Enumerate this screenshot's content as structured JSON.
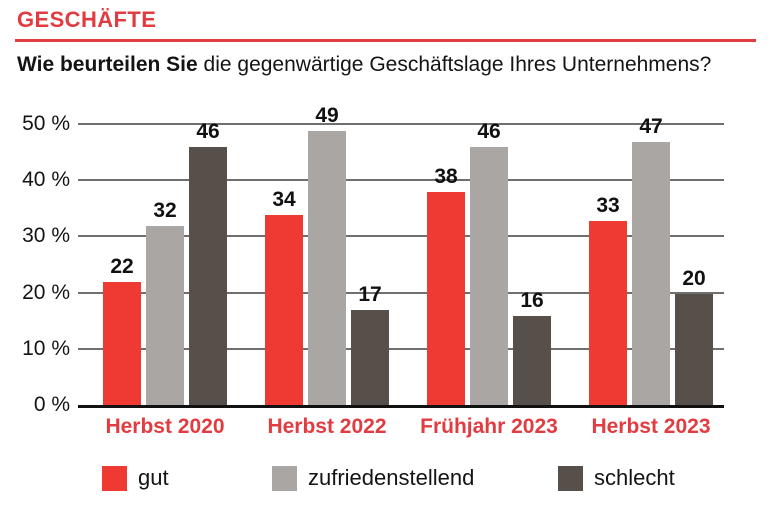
{
  "header": {
    "kicker": "GESCHÄFTE",
    "question_bold": "Wie beurteilen Sie",
    "question_rest": " die gegenwärtige Geschäftslage Ihres Unternehmens?"
  },
  "colors": {
    "accent_red": "#e13c41",
    "bar_red": "#ee3a33",
    "bar_gray": "#a9a6a3",
    "bar_dark": "#564f4a",
    "gridline": "#6f6f6f",
    "axis": "#111111"
  },
  "chart_data": {
    "type": "bar",
    "title": "Wie beurteilen Sie die gegenwärtige Geschäftslage Ihres Unternehmens?",
    "categories": [
      "Herbst 2020",
      "Herbst 2022",
      "Frühjahr 2023",
      "Herbst 2023"
    ],
    "series": [
      {
        "name": "gut",
        "color": "#ee3a33",
        "values": [
          22,
          34,
          38,
          33
        ]
      },
      {
        "name": "zufriedenstellend",
        "color": "#a9a6a3",
        "values": [
          32,
          49,
          46,
          47
        ]
      },
      {
        "name": "schlecht",
        "color": "#564f4a",
        "values": [
          46,
          17,
          16,
          20
        ]
      }
    ],
    "ylabel": "",
    "xlabel": "",
    "ylim": [
      0,
      50
    ],
    "y_tick_values": [
      0,
      10,
      20,
      30,
      40,
      50
    ],
    "y_tick_labels": [
      "0 %",
      "10 %",
      "20 %",
      "30 %",
      "40 %",
      "50 %"
    ],
    "grid": true,
    "value_labels": true,
    "legend_position": "bottom"
  }
}
